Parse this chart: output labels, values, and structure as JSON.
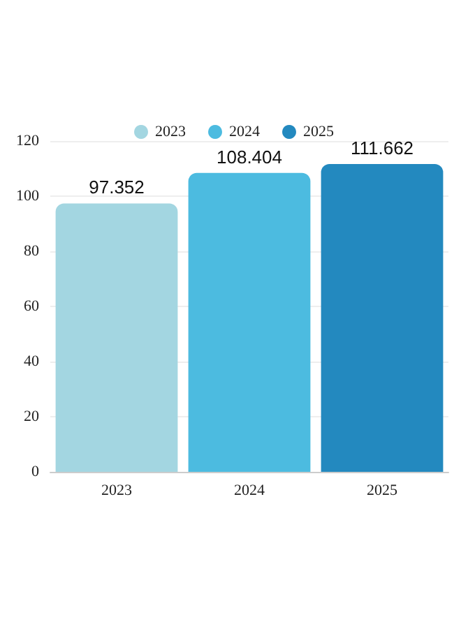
{
  "chart_data": {
    "type": "bar",
    "categories": [
      "2023",
      "2024",
      "2025"
    ],
    "series": [
      {
        "name": "2023",
        "color": "#a3d6e1",
        "values": [
          97.352,
          null,
          null
        ]
      },
      {
        "name": "2024",
        "color": "#4cbbe0",
        "values": [
          null,
          108.404,
          null
        ]
      },
      {
        "name": "2025",
        "color": "#2389bf",
        "values": [
          null,
          null,
          111.662
        ]
      }
    ],
    "ylim": [
      0,
      120
    ],
    "yticks": [
      0,
      20,
      40,
      60,
      80,
      100,
      120
    ],
    "grid": "y",
    "legend": "top",
    "data_labels": true
  }
}
